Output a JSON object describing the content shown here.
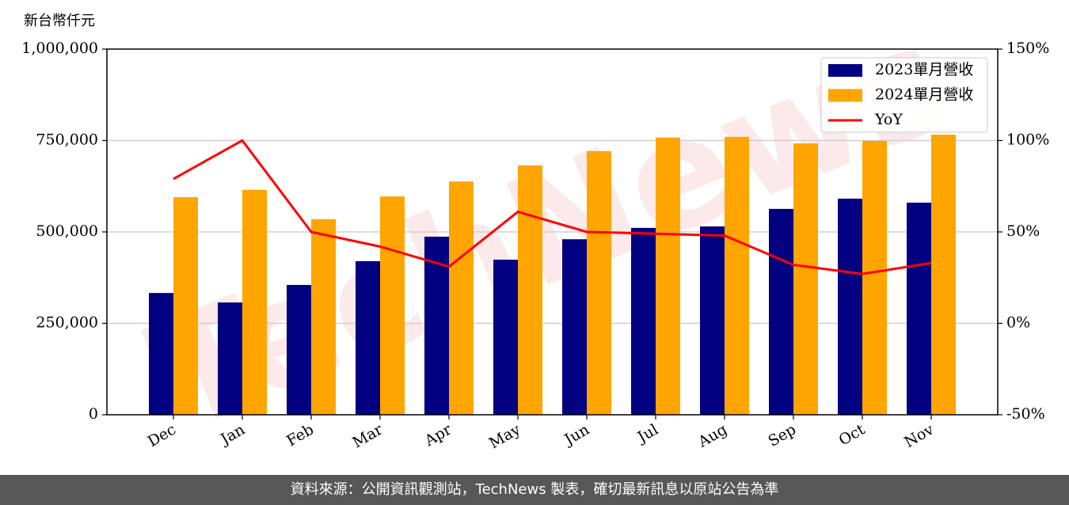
{
  "chart_data": {
    "type": "bar",
    "y_unit_label": "新台幣仟元",
    "watermark": "TechNews",
    "categories": [
      "Dec",
      "Jan",
      "Feb",
      "Mar",
      "Apr",
      "May",
      "Jun",
      "Jul",
      "Aug",
      "Sep",
      "Oct",
      "Nov"
    ],
    "series": [
      {
        "name": "2023單月營收",
        "color": "#000080",
        "values": [
          333000,
          307000,
          355000,
          420000,
          487000,
          424000,
          480000,
          511000,
          515000,
          563000,
          591000,
          580000
        ]
      },
      {
        "name": "2024單月營收",
        "color": "#ffa500",
        "values": [
          595000,
          615000,
          535000,
          597000,
          638000,
          682000,
          721000,
          758000,
          760000,
          742000,
          749000,
          766000
        ]
      },
      {
        "name": "YoY",
        "type": "line",
        "axis": "y2",
        "color": "#ff0000",
        "values": [
          79,
          100,
          50,
          42,
          31,
          61,
          50,
          49,
          48,
          32,
          27,
          33
        ]
      }
    ],
    "ylim": [
      0,
      1000000
    ],
    "yticks": [
      0,
      {
        "value": 250000,
        "label": "250,000"
      },
      {
        "value": 500000,
        "label": "500,000"
      },
      {
        "value": 750000,
        "label": "750,000"
      },
      {
        "value": 1000000,
        "label": "1,000,000"
      }
    ],
    "y2lim": [
      -50,
      150
    ],
    "y2ticks": [
      {
        "value": -50,
        "label": "-50%"
      },
      {
        "value": 0,
        "label": "0%"
      },
      {
        "value": 50,
        "label": "50%"
      },
      {
        "value": 100,
        "label": "100%"
      },
      {
        "value": 150,
        "label": "150%"
      }
    ],
    "grid": true,
    "legend": "upper right",
    "source": "資料來源：公開資訊觀測站，TechNews 製表，確切最新訊息以原站公告為準"
  }
}
